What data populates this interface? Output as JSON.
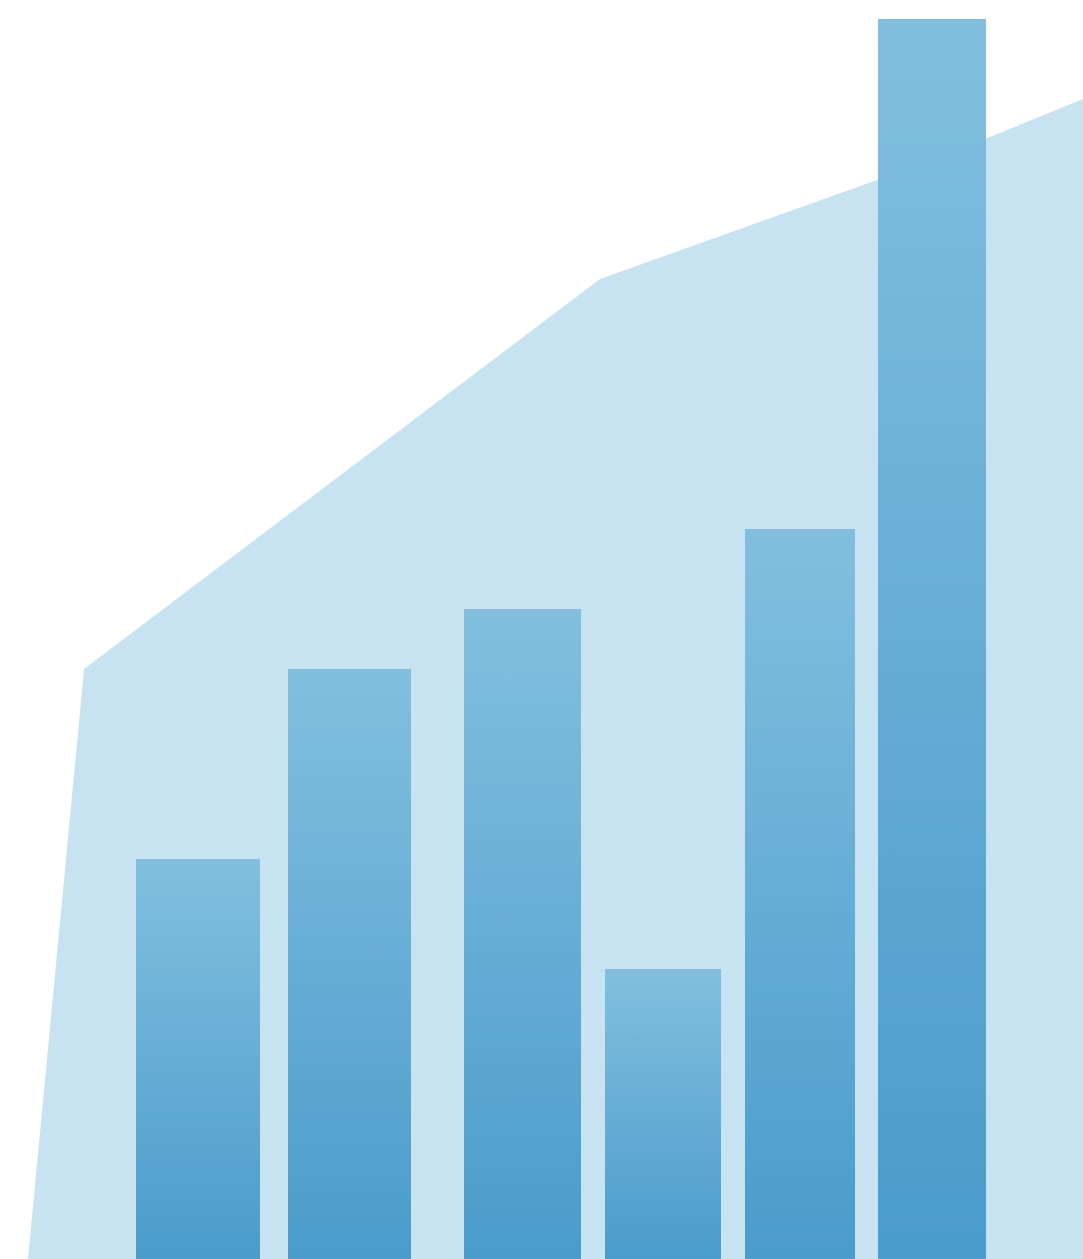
{
  "chart_data": {
    "type": "bar",
    "title": "",
    "xlabel": "",
    "ylabel": "",
    "categories": [
      "",
      "",
      "",
      "",
      "",
      ""
    ],
    "values": [
      40,
      59,
      65,
      29,
      73,
      124
    ],
    "ylim": [
      0,
      125
    ],
    "grid": false,
    "legend": "none",
    "background_area": {
      "type": "area",
      "points": [
        [
          0.2,
          59
        ],
        [
          4.5,
          98
        ],
        [
          7.3,
          110
        ],
        [
          8.6,
          116
        ]
      ]
    },
    "colors": {
      "bar_top": "#82bfdf",
      "bar_bottom": "#4a9ccb",
      "area": "#c7e3f1",
      "background": "#ffffff"
    }
  }
}
